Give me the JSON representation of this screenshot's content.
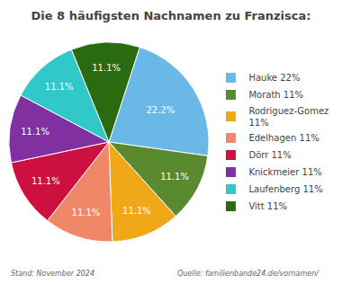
{
  "chart_data": {
    "type": "pie",
    "title": "Die 8 häufigsten Nachnamen zu Franzisca:",
    "categories": [
      "Hauke 22%",
      "Morath 11%",
      "Rodriguez-Gomez\n11%",
      "Edelhagen 11%",
      "Dörr 11%",
      "Knickmeier 11%",
      "Laufenberg 11%",
      "Vitt 11%"
    ],
    "values": [
      22.2,
      11.1,
      11.1,
      11.1,
      11.1,
      11.1,
      11.1,
      11.1
    ],
    "value_labels": [
      "22.2%",
      "11.1%",
      "11.1%",
      "11.1%",
      "11.1%",
      "11.1%",
      "11.1%",
      "11.1%"
    ],
    "colors": [
      "#6ab8e8",
      "#5a8a30",
      "#f0a818",
      "#f08868",
      "#cc1040",
      "#8030a0",
      "#30c8c8",
      "#2a6a10"
    ],
    "data_labels": true,
    "legend": "right",
    "annotations": [
      "Stand: November 2024",
      "Quelle: familienbande24.de/vornamen/"
    ]
  }
}
